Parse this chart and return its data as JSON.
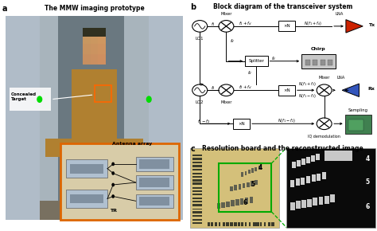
{
  "title_a": "The MMW imaging prototype",
  "title_b": "Block diagram of the transceiver system",
  "title_c": "Resolution board and the reconstructed image",
  "label_a": "a",
  "label_b": "b",
  "label_c": "c",
  "bg_color": "#ffffff",
  "fig_width": 4.74,
  "fig_height": 2.9,
  "dpi": 100
}
